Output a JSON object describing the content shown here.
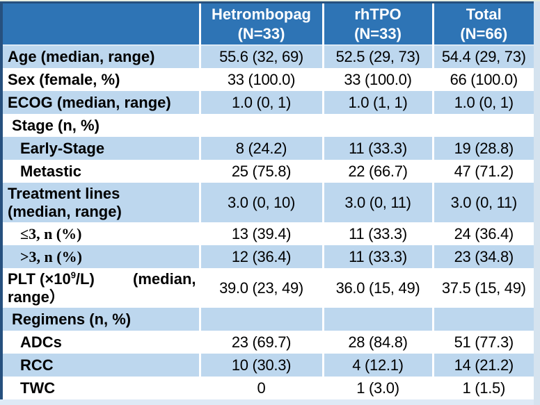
{
  "theme": {
    "header_bg": "#2E74B5",
    "row_alt_bg": "#BDD7EE",
    "row_bg": "#FFFFFF",
    "navy": "#26507E",
    "sep": "#FFFFFF",
    "header_rule": "#DCE9F5",
    "strip_right": "#D5E3EF",
    "strip_bottom": "#DEEAF6",
    "hairline": "#E6EEE2",
    "text": "#000000",
    "header_text": "#FFFFFF"
  },
  "table": {
    "columns": [
      {
        "name": "Hetrombopag",
        "n": "(N=33)"
      },
      {
        "name": "rhTPO",
        "n": "(N=33)"
      },
      {
        "name": "Total",
        "n": "(N=66)"
      }
    ],
    "rows": [
      {
        "label": "Age (median, range)",
        "values": [
          "55.6 (32, 69)",
          "52.5 (29, 73)",
          "54.4 (29, 73)"
        ]
      },
      {
        "label": "Sex (female, %)",
        "values": [
          "33 (100.0)",
          "33 (100.0)",
          "66 (100.0)"
        ]
      },
      {
        "label": "ECOG (median, range)",
        "values": [
          "1.0 (0, 1)",
          "1.0 (1, 1)",
          "1.0 (0, 1)"
        ]
      },
      {
        "label": "Stage (n, %)",
        "values": [
          "",
          "",
          ""
        ]
      },
      {
        "label": "Early-Stage",
        "values": [
          "8 (24.2)",
          "11 (33.3)",
          "19 (28.8)"
        ]
      },
      {
        "label": "Metastic",
        "values": [
          "25 (75.8)",
          "22 (66.7)",
          "47 (71.2)"
        ]
      },
      {
        "label_line1": "Treatment lines",
        "label_line2": "(median, range)",
        "values": [
          "3.0 (0, 10)",
          "3.0 (0, 11)",
          "3.0 (0, 11)"
        ]
      },
      {
        "label": "≤3, n (%)",
        "values": [
          "13 (39.4)",
          "11 (33.3)",
          "24 (36.4)"
        ]
      },
      {
        "label": ">3, n (%)",
        "values": [
          "12 (36.4)",
          "11 (33.3)",
          "23 (34.8)"
        ]
      },
      {
        "label_pre": "PLT (×10",
        "label_sup": "9",
        "label_post": "/L)",
        "label_tail1": "(median,",
        "label_line2": "range）",
        "values": [
          "39.0 (23, 49)",
          "36.0 (15, 49)",
          "37.5 (15, 49)"
        ]
      },
      {
        "label": "Regimens (n, %)",
        "values": [
          "",
          "",
          ""
        ]
      },
      {
        "label": "ADCs",
        "values": [
          "23 (69.7)",
          "28 (84.8)",
          "51 (77.3)"
        ]
      },
      {
        "label": "RCC",
        "values": [
          "10 (30.3)",
          "4 (12.1)",
          "14 (21.2)"
        ]
      },
      {
        "label": "TWC",
        "values": [
          "0",
          "1 (3.0)",
          "1 (1.5)"
        ]
      }
    ]
  }
}
